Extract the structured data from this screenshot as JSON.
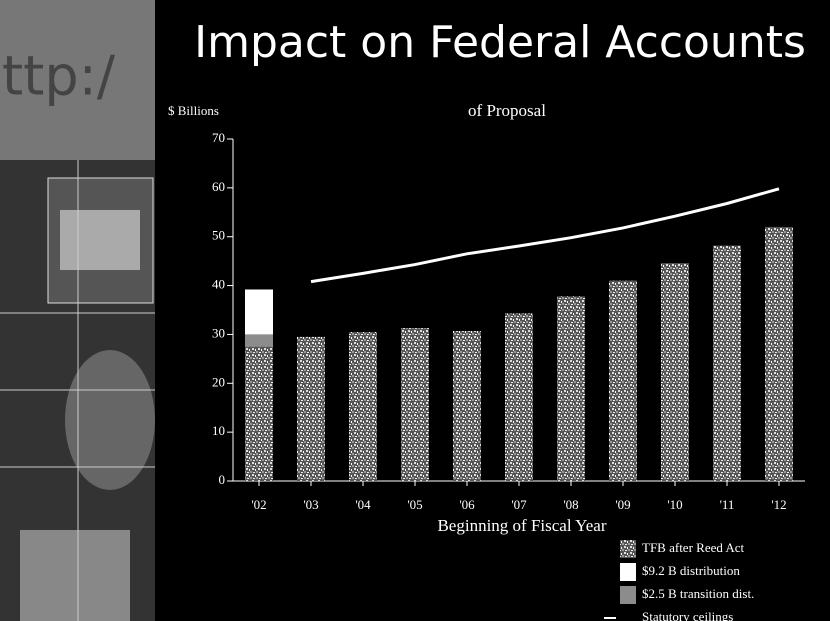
{
  "chart_data": {
    "type": "bar",
    "title": "Impact on Federal Accounts",
    "subtitle": "of Proposal",
    "y_label": "$ Billions",
    "x_label": "Beginning of Fiscal Year",
    "categories": [
      "'02",
      "'03",
      "'04",
      "'05",
      "'06",
      "'07",
      "'08",
      "'09",
      "'10",
      "'11",
      "'12"
    ],
    "stacked": true,
    "series": [
      {
        "name": "TFB after Reed Act",
        "color": "#b4b4b4",
        "values": [
          27.5,
          29.5,
          30.5,
          31.3,
          30.7,
          34.3,
          37.8,
          41.0,
          44.6,
          48.2,
          52.0
        ]
      },
      {
        "name": "$9.2 B distribution",
        "color": "#ffffff",
        "values": [
          9.2,
          null,
          null,
          null,
          null,
          null,
          null,
          null,
          null,
          null,
          null
        ]
      },
      {
        "name": "$2.5 B transition dist.",
        "color": "#8c8c8c",
        "values": [
          2.5,
          null,
          null,
          null,
          null,
          null,
          null,
          null,
          null,
          null,
          null
        ]
      },
      {
        "name": "Statutory ceilings",
        "color": "#ffffff",
        "type": "line",
        "values": [
          null,
          40.8,
          42.5,
          44.3,
          46.5,
          48.1,
          49.8,
          51.8,
          54.2,
          56.8,
          59.8
        ]
      }
    ],
    "stack_order": [
      0,
      2,
      1
    ],
    "ylim": [
      0,
      70
    ],
    "yticks": [
      0,
      10,
      20,
      30,
      40,
      50,
      60,
      70
    ]
  }
}
